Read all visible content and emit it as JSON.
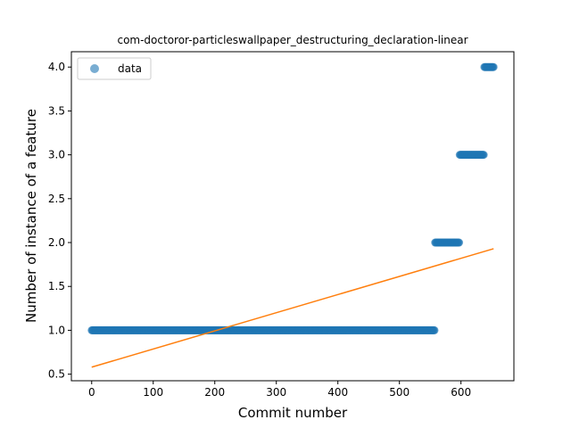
{
  "chart_data": {
    "type": "scatter",
    "title": "com-doctoror-particleswallpaper_destructuring_declaration-linear",
    "xlabel": "Commit number",
    "ylabel": "Number of instance of a feature",
    "xlim": [
      -33,
      686
    ],
    "ylim": [
      0.425,
      4.175
    ],
    "xticks": [
      0,
      100,
      200,
      300,
      400,
      500,
      600
    ],
    "yticks": [
      0.5,
      1.0,
      1.5,
      2.0,
      2.5,
      3.0,
      3.5,
      4.0
    ],
    "ytick_labels": [
      "0.5",
      "1.0",
      "1.5",
      "2.0",
      "2.5",
      "3.0",
      "3.5",
      "4.0"
    ],
    "grid": false,
    "legend": {
      "position": "top-left",
      "entries": [
        "data"
      ]
    },
    "series": [
      {
        "name": "data",
        "kind": "scatter",
        "color": "#1f77b4",
        "segments": [
          {
            "x_start": 0,
            "x_end": 557,
            "y": 1.0
          },
          {
            "x_start": 558,
            "x_end": 597,
            "y": 2.0
          },
          {
            "x_start": 598,
            "x_end": 637,
            "y": 3.0
          },
          {
            "x_start": 638,
            "x_end": 653,
            "y": 4.0
          }
        ]
      },
      {
        "kind": "line",
        "color": "#ff7f0e",
        "x": [
          0,
          653
        ],
        "y": [
          0.58,
          1.93
        ]
      }
    ]
  }
}
